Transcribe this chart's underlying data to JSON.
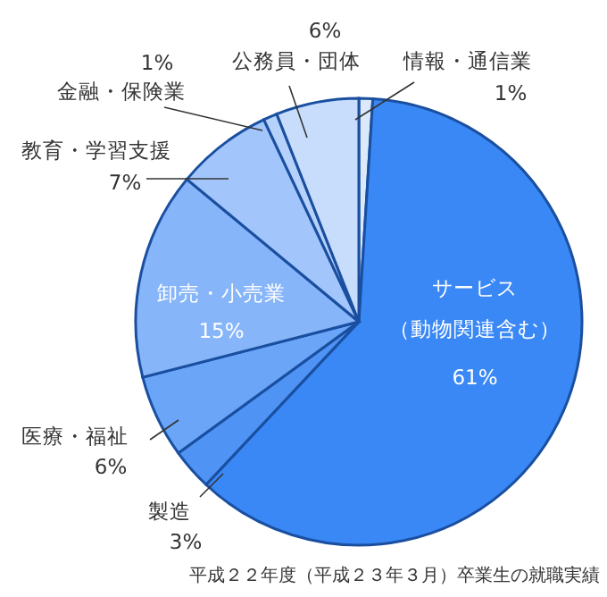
{
  "chart_data": {
    "type": "pie",
    "categories": [
      "情報・通信業",
      "サービス（動物関連含む）",
      "製造",
      "医療・福祉",
      "卸売・小売業",
      "教育・学習支援",
      "金融・保険業",
      "公務員・団体"
    ],
    "value_labels": [
      "1%",
      "61%",
      "3%",
      "6%",
      "15%",
      "7%",
      "1%",
      "6%"
    ],
    "values": [
      1,
      61,
      3,
      6,
      15,
      7,
      1,
      6
    ],
    "colors": [
      "#dce9fb",
      "#3a88f5",
      "#4f94f5",
      "#6aa5f7",
      "#86b5f9",
      "#a2c6fb",
      "#b6d2fb",
      "#c8ddfc"
    ],
    "annotations": [
      "平成２２年度（平成２３年３月）卒業生の就職実績"
    ]
  }
}
